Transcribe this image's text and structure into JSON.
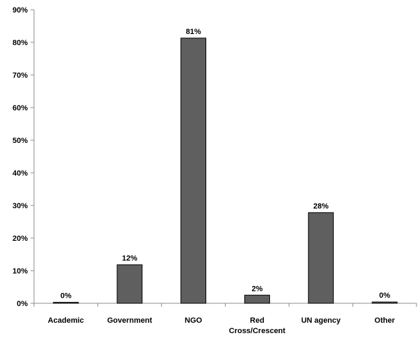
{
  "colors": {
    "bar_fill": "#5f5f5f",
    "bar_stroke": "#000000",
    "axis": "#8c8c8c",
    "text": "#000000"
  },
  "chart_data": {
    "type": "bar",
    "title": "",
    "xlabel": "",
    "ylabel": "",
    "categories": [
      [
        "Academic"
      ],
      [
        "Government"
      ],
      [
        "NGO"
      ],
      [
        "Red",
        "Cross/Crescent"
      ],
      [
        "UN agency"
      ],
      [
        "Other"
      ]
    ],
    "values": [
      0.3,
      11.8,
      81.3,
      2.5,
      27.8,
      0.4
    ],
    "data_labels": [
      "0%",
      "12%",
      "81%",
      "2%",
      "28%",
      "0%"
    ],
    "ylim": [
      0,
      90
    ],
    "yticks": [
      0,
      10,
      20,
      30,
      40,
      50,
      60,
      70,
      80,
      90
    ],
    "ytick_labels": [
      "0%",
      "10%",
      "20%",
      "30%",
      "40%",
      "50%",
      "60%",
      "70%",
      "80%",
      "90%"
    ],
    "grid": false,
    "legend": "none"
  }
}
